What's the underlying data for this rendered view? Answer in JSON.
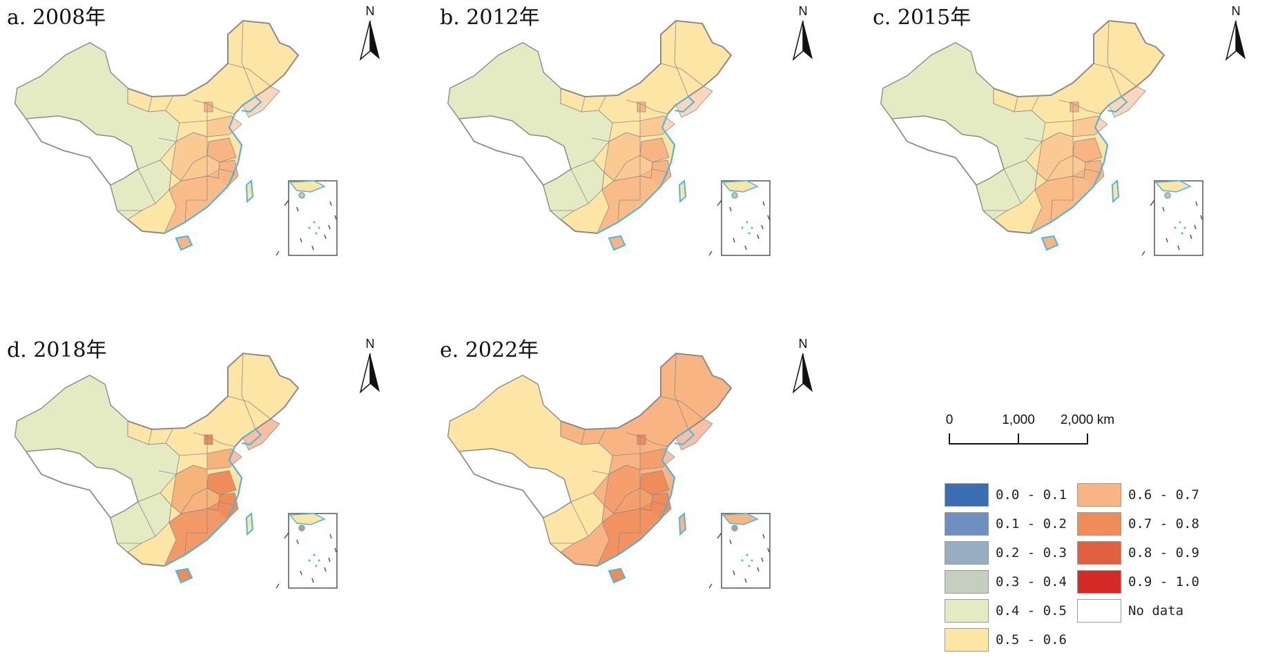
{
  "panels": [
    {
      "title": "a. 2008年",
      "north": "N",
      "class_west": "0.4 - 0.5",
      "class_east": "0.5 - 0.6",
      "class_hot": "0.6 - 0.7"
    },
    {
      "title": "b. 2012年",
      "north": "N",
      "class_west": "0.4 - 0.5",
      "class_east": "0.5 - 0.6",
      "class_hot": "0.6 - 0.7"
    },
    {
      "title": "c. 2015年",
      "north": "N",
      "class_west": "0.4 - 0.5",
      "class_east": "0.5 - 0.6",
      "class_hot": "0.6 - 0.7"
    },
    {
      "title": "d. 2018年",
      "north": "N",
      "class_west": "0.4 - 0.5",
      "class_east": "0.5 - 0.6",
      "class_hot": "0.7 - 0.8"
    },
    {
      "title": "e. 2022年",
      "north": "N",
      "class_west": "0.5 - 0.6",
      "class_east": "0.6 - 0.7",
      "class_hot": "0.7 - 0.8"
    }
  ],
  "scalebar": {
    "labels": [
      "0",
      "1,000",
      "2,000 km"
    ]
  },
  "legend": {
    "items": [
      {
        "label": "0.0 - 0.1",
        "color": "#3b6db3"
      },
      {
        "label": "0.1 - 0.2",
        "color": "#6f8fc1"
      },
      {
        "label": "0.2 - 0.3",
        "color": "#97aec2"
      },
      {
        "label": "0.3 - 0.4",
        "color": "#c4cfc0"
      },
      {
        "label": "0.4 - 0.5",
        "color": "#e4ebc3"
      },
      {
        "label": "0.5 - 0.6",
        "color": "#fde5a5"
      },
      {
        "label": "0.6 - 0.7",
        "color": "#f8b583"
      },
      {
        "label": "0.7 - 0.8",
        "color": "#f08c5a"
      },
      {
        "label": "0.8 - 0.9",
        "color": "#e0603f"
      },
      {
        "label": "0.9 - 1.0",
        "color": "#d42b26"
      },
      {
        "label": "No data",
        "color": "#ffffff"
      }
    ]
  },
  "colors": {
    "border": "#8a8a8a",
    "coast": "#47b8e0",
    "inset_border": "#555555"
  }
}
